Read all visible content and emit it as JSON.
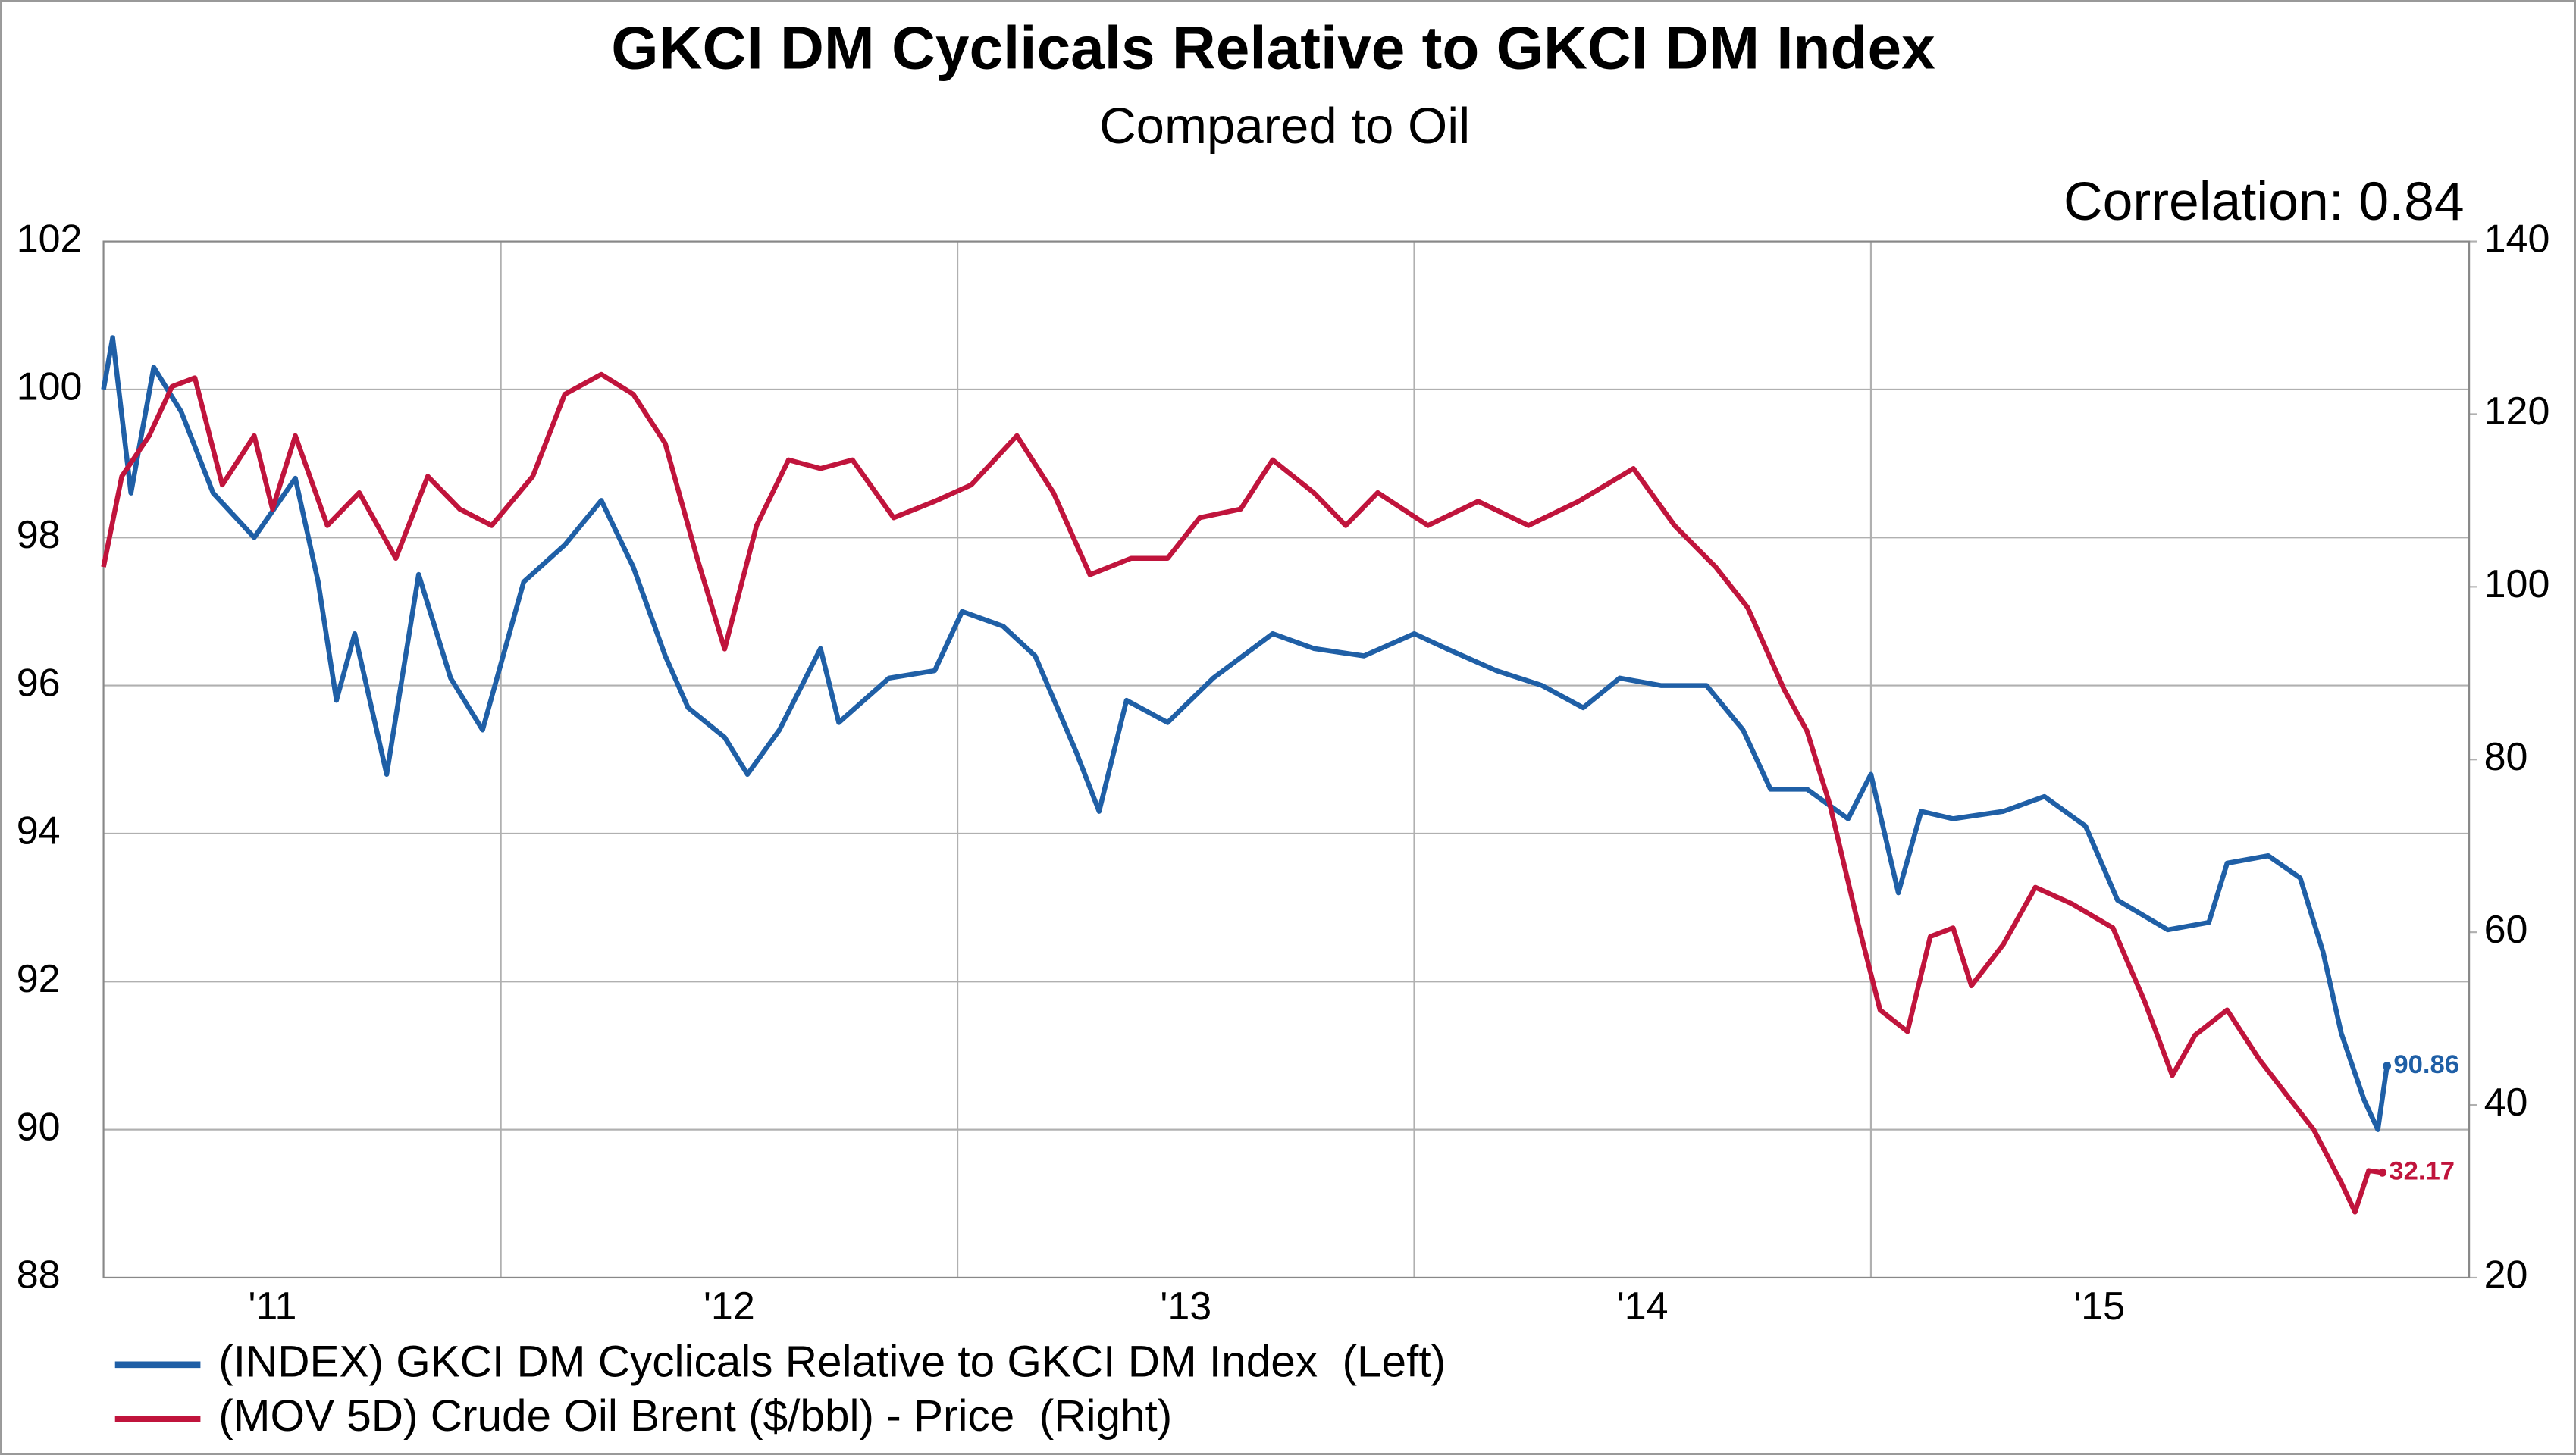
{
  "chart_data": {
    "type": "line",
    "title": "GKCI DM Cyclicals Relative to GKCI DM Index",
    "subtitle": "Compared to Oil",
    "annotation": "Correlation: 0.84",
    "xlim": [
      2011.13,
      2016.31
    ],
    "xticks": [
      {
        "value": 2011,
        "label": "'11"
      },
      {
        "value": 2012,
        "label": "'12"
      },
      {
        "value": 2013,
        "label": "'13"
      },
      {
        "value": 2014,
        "label": "'14"
      },
      {
        "value": 2015,
        "label": "'15"
      }
    ],
    "ylim": [
      88,
      102
    ],
    "yticks": [
      88,
      90,
      92,
      94,
      96,
      98,
      100,
      102
    ],
    "y2lim": [
      20,
      140
    ],
    "y2ticks": [
      20,
      40,
      60,
      80,
      100,
      120,
      140
    ],
    "grid": true,
    "legend": "bottom-left",
    "series": [
      {
        "name": "(INDEX) GKCI DM Cyclicals Relative to GKCI DM Index  (Left)",
        "color": "#1f5fa6",
        "axis": "y",
        "x": [
          2011.13,
          2011.15,
          2011.19,
          2011.24,
          2011.3,
          2011.37,
          2011.46,
          2011.55,
          2011.6,
          2011.64,
          2011.68,
          2011.75,
          2011.82,
          2011.89,
          2011.96,
          2012.05,
          2012.14,
          2012.22,
          2012.29,
          2012.36,
          2012.41,
          2012.49,
          2012.54,
          2012.61,
          2012.7,
          2012.74,
          2012.85,
          2012.95,
          2013.01,
          2013.1,
          2013.17,
          2013.26,
          2013.31,
          2013.37,
          2013.46,
          2013.56,
          2013.69,
          2013.78,
          2013.89,
          2014.0,
          2014.07,
          2014.18,
          2014.28,
          2014.37,
          2014.45,
          2014.54,
          2014.64,
          2014.72,
          2014.78,
          2014.86,
          2014.95,
          2015.0,
          2015.06,
          2015.11,
          2015.18,
          2015.29,
          2015.38,
          2015.47,
          2015.54,
          2015.65,
          2015.74,
          2015.78,
          2015.87,
          2015.94,
          2015.99,
          2016.03,
          2016.08,
          2016.11,
          2016.13
        ],
        "values": [
          100.0,
          100.7,
          98.6,
          100.3,
          99.7,
          98.6,
          98.0,
          98.8,
          97.4,
          95.8,
          96.7,
          94.8,
          97.5,
          96.1,
          95.4,
          97.4,
          97.9,
          98.5,
          97.6,
          96.4,
          95.7,
          95.3,
          94.8,
          95.4,
          96.5,
          95.5,
          96.1,
          96.2,
          97.0,
          96.8,
          96.4,
          95.1,
          94.3,
          95.8,
          95.5,
          96.1,
          96.7,
          96.5,
          96.4,
          96.7,
          96.5,
          96.2,
          96.0,
          95.7,
          96.1,
          96.0,
          96.0,
          95.4,
          94.6,
          94.6,
          94.2,
          94.8,
          93.2,
          94.3,
          94.2,
          94.3,
          94.5,
          94.1,
          93.1,
          92.7,
          92.8,
          93.6,
          93.7,
          93.4,
          92.4,
          91.3,
          90.4,
          90.0,
          90.86
        ]
      },
      {
        "name": "(MOV 5D) Crude Oil Brent ($/bbl) - Price  (Right)",
        "color": "#c0143c",
        "axis": "y2",
        "x": [
          2011.13,
          2011.17,
          2011.23,
          2011.28,
          2011.33,
          2011.39,
          2011.46,
          2011.5,
          2011.55,
          2011.62,
          2011.69,
          2011.77,
          2011.84,
          2011.91,
          2011.98,
          2012.07,
          2012.14,
          2012.22,
          2012.29,
          2012.36,
          2012.43,
          2012.49,
          2012.56,
          2012.63,
          2012.7,
          2012.77,
          2012.86,
          2012.95,
          2013.03,
          2013.13,
          2013.21,
          2013.29,
          2013.38,
          2013.46,
          2013.53,
          2013.62,
          2013.69,
          2013.78,
          2013.85,
          2013.92,
          2014.03,
          2014.14,
          2014.25,
          2014.36,
          2014.48,
          2014.57,
          2014.66,
          2014.73,
          2014.81,
          2014.86,
          2014.91,
          2014.97,
          2015.02,
          2015.08,
          2015.13,
          2015.18,
          2015.22,
          2015.29,
          2015.36,
          2015.44,
          2015.53,
          2015.6,
          2015.66,
          2015.71,
          2015.78,
          2015.85,
          2015.92,
          2015.97,
          2016.03,
          2016.06,
          2016.09,
          2016.12
        ],
        "values": [
          102.3,
          112.8,
          117.5,
          123.2,
          124.2,
          111.8,
          117.5,
          109.0,
          117.5,
          107.1,
          110.9,
          103.3,
          112.8,
          109.0,
          107.1,
          112.8,
          122.3,
          124.6,
          122.3,
          116.6,
          103.3,
          92.8,
          107.1,
          114.7,
          113.7,
          114.7,
          108.0,
          109.9,
          111.8,
          117.5,
          110.9,
          101.4,
          103.3,
          103.3,
          108.0,
          109.0,
          114.7,
          110.9,
          107.1,
          110.9,
          107.1,
          109.9,
          107.1,
          109.9,
          113.7,
          107.1,
          102.3,
          97.6,
          88.1,
          83.3,
          74.8,
          61.4,
          51.0,
          48.5,
          59.5,
          60.5,
          53.8,
          58.6,
          65.2,
          63.3,
          60.5,
          51.9,
          43.4,
          48.1,
          51.0,
          45.3,
          40.5,
          37.1,
          31.0,
          27.6,
          32.4,
          32.17
        ]
      }
    ]
  }
}
